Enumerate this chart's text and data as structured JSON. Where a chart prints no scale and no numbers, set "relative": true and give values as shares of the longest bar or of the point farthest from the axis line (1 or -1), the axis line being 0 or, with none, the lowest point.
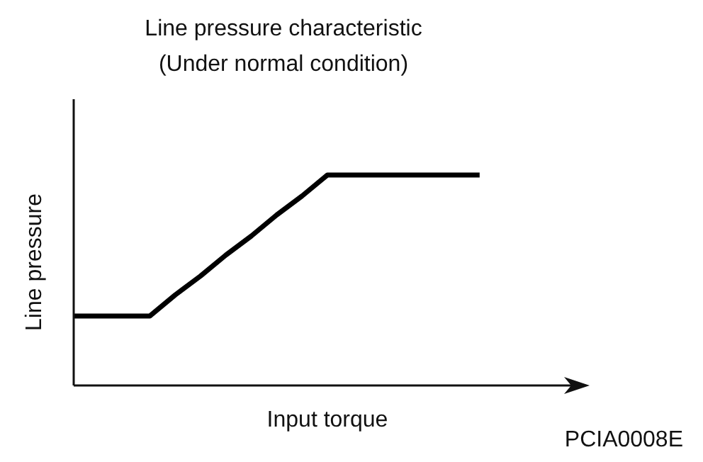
{
  "chart_data": {
    "type": "line",
    "title": "Line pressure characteristic\n(Under normal condition)",
    "xlabel": "Input torque",
    "ylabel": "Line pressure",
    "relative": true,
    "categories": [
      null,
      null,
      null,
      null,
      null,
      null,
      null,
      null,
      null,
      null,
      null,
      null,
      null,
      null,
      null,
      null,
      null,
      null,
      null,
      null
    ],
    "series": [
      {
        "color": "#000000",
        "values": [
          0.33,
          0.33,
          0.33,
          0.33,
          0.43,
          0.52,
          0.62,
          0.71,
          0.81,
          0.9,
          1,
          1,
          1,
          1,
          1,
          1,
          1,
          null,
          null,
          null
        ]
      }
    ],
    "annotations": [
      "PCIA0008E"
    ],
    "grid": false,
    "legend": false,
    "marker": "none",
    "line_style": "solid"
  }
}
